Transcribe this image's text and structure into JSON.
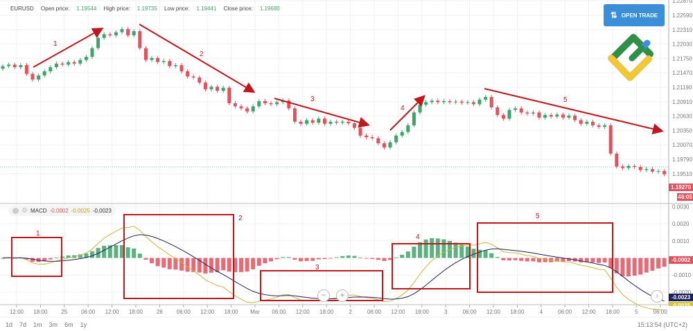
{
  "header": {
    "symbol": "EURUSD",
    "open_label": "Open price:",
    "open": "1.19544",
    "high_label": "High price:",
    "high": "1.19735",
    "low_label": "Low price:",
    "low": "1.19441",
    "close_label": "Close price:",
    "close": "1.19680"
  },
  "open_trade": {
    "label": "OPEN TRADE",
    "icon": "arrows-up-down-icon"
  },
  "logo": "LiteForex logo",
  "price_badge": "1.19270",
  "timer_badge": "46:05",
  "macd": {
    "label": "MACD",
    "hist": "-0.0002",
    "macd": "-0.0025",
    "signal": "-0.0023",
    "hist_badge": "-0.0002",
    "signal_badge": "-0.0023",
    "macd_badge": "-0.0025"
  },
  "ranges": [
    "1d",
    "7d",
    "1m",
    "3m",
    "6m",
    "1y"
  ],
  "clock": "15:13:54 (UTC+2)",
  "zoom": {
    "out": "−",
    "in": "+"
  },
  "colors": {
    "up": "#3fa36b",
    "down": "#e0525e",
    "annot": "#c0171d",
    "macd_line": "#c8b63a",
    "signal_line": "#1d1f5c"
  },
  "chart_data": {
    "type": "candlestick",
    "symbol": "EURUSD",
    "price_ticks": [
      "1.22870",
      "1.22590",
      "1.22310",
      "1.22030",
      "1.21750",
      "1.21470",
      "1.21190",
      "1.20910",
      "1.20630",
      "1.20350",
      "1.20070",
      "1.19790",
      "1.19510"
    ],
    "macd_ticks": [
      "0.0030",
      "0.0020",
      "0.0010",
      "-0.0010",
      "-0.0020"
    ],
    "time_ticks": [
      "12:00",
      "18:00",
      "25",
      "06:00",
      "12:00",
      "18:00",
      "26",
      "06:00",
      "12:00",
      "18:00",
      "Mar",
      "06:00",
      "12:00",
      "18:00",
      "2",
      "06:00",
      "12:00",
      "18:00",
      "3",
      "06:00",
      "12:00",
      "18:00",
      "4",
      "06:00",
      "12:00",
      "18:00",
      "5",
      "06:00"
    ],
    "first_open": 1.2155,
    "closes": [
      1.216,
      1.2163,
      1.2158,
      1.2162,
      1.2145,
      1.2134,
      1.2142,
      1.215,
      1.2158,
      1.2165,
      1.2163,
      1.2168,
      1.2165,
      1.2172,
      1.2178,
      1.2195,
      1.2215,
      1.2222,
      1.222,
      1.2226,
      1.2232,
      1.222,
      1.2228,
      1.2195,
      1.2172,
      1.2176,
      1.2168,
      1.217,
      1.216,
      1.2162,
      1.215,
      1.214,
      1.2138,
      1.2128,
      1.2115,
      1.212,
      1.2112,
      1.2118,
      1.2088,
      1.2082,
      1.2078,
      1.2072,
      1.2082,
      1.2092,
      1.2088,
      1.2086,
      1.209,
      1.2093,
      1.2078,
      1.2052,
      1.2048,
      1.2055,
      1.205,
      1.2058,
      1.2048,
      1.2052,
      1.205,
      1.2052,
      1.2049,
      1.204,
      1.2025,
      1.2022,
      1.202,
      1.201,
      1.2002,
      1.2012,
      1.2025,
      1.2032,
      1.2045,
      1.207,
      1.2085,
      1.209,
      1.2093,
      1.209,
      1.2092,
      1.209,
      1.2091,
      1.2089,
      1.209,
      1.2086,
      1.2095,
      1.21,
      1.208,
      1.2065,
      1.2058,
      1.2075,
      1.2078,
      1.207,
      1.2068,
      1.207,
      1.206,
      1.2065,
      1.2062,
      1.2066,
      1.206,
      1.2064,
      1.2055,
      1.2048,
      1.2052,
      1.2045,
      1.2042,
      1.2045,
      1.199,
      1.1965,
      1.1962,
      1.1966,
      1.1964,
      1.1958,
      1.196,
      1.1955,
      1.1956,
      1.195
    ],
    "annotations": [
      "1",
      "2",
      "3",
      "4",
      "5"
    ],
    "macd_annotations": [
      "1",
      "2",
      "3",
      "4",
      "5"
    ]
  }
}
